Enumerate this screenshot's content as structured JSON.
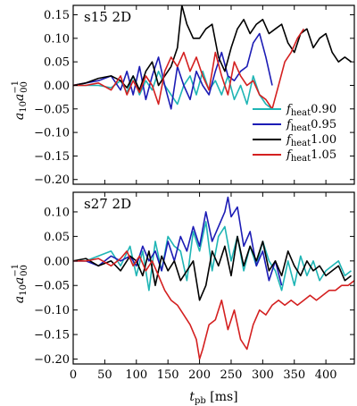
{
  "chart_data": [
    {
      "type": "line",
      "title": "s15 2D",
      "xlabel": "",
      "ylabel": "a10 a00^-1",
      "xlim": [
        0,
        445
      ],
      "ylim": [
        -0.21,
        0.17
      ],
      "xticks": [
        0,
        50,
        100,
        150,
        200,
        250,
        300,
        350,
        400
      ],
      "yticks": [
        -0.2,
        -0.15,
        -0.1,
        -0.05,
        0.0,
        0.05,
        0.1,
        0.15
      ],
      "ytick_labels": [
        "−0.20",
        "−0.15",
        "−0.10",
        "−0.05",
        "0.00",
        "0.05",
        "0.10",
        "0.15"
      ],
      "legend_position": "center-right",
      "series": [
        {
          "name": "f_heat 0.90",
          "color": "#1fb5b5",
          "x": [
            0,
            20,
            40,
            60,
            75,
            85,
            95,
            105,
            115,
            125,
            135,
            145,
            155,
            165,
            175,
            185,
            195,
            205,
            215,
            225,
            235,
            245,
            255,
            265,
            275,
            285,
            295,
            305,
            315
          ],
          "y": [
            0.0,
            0.0,
            0.0,
            -0.005,
            0.01,
            -0.015,
            0.02,
            -0.02,
            0.01,
            -0.01,
            0.03,
            0.0,
            -0.02,
            -0.04,
            0.0,
            0.02,
            -0.02,
            0.03,
            -0.01,
            0.01,
            -0.02,
            0.02,
            -0.03,
            0.0,
            -0.04,
            0.02,
            -0.02,
            -0.04,
            -0.05
          ]
        },
        {
          "name": "f_heat 0.95",
          "color": "#1c1cb5",
          "x": [
            0,
            20,
            40,
            60,
            75,
            85,
            95,
            105,
            115,
            125,
            135,
            145,
            155,
            165,
            175,
            185,
            195,
            205,
            215,
            225,
            235,
            245,
            255,
            265,
            275,
            285,
            295,
            305,
            315
          ],
          "y": [
            0.0,
            0.005,
            0.01,
            0.02,
            -0.01,
            0.03,
            -0.02,
            0.04,
            -0.03,
            0.02,
            0.06,
            0.0,
            -0.05,
            0.04,
            0.0,
            -0.03,
            0.03,
            0.0,
            -0.02,
            0.03,
            0.07,
            0.02,
            0.01,
            0.03,
            0.04,
            0.09,
            0.11,
            0.06,
            0.0
          ]
        },
        {
          "name": "f_heat 1.00",
          "color": "#000000",
          "x": [
            0,
            20,
            40,
            60,
            75,
            85,
            95,
            105,
            115,
            125,
            135,
            145,
            155,
            165,
            172,
            180,
            190,
            200,
            210,
            220,
            230,
            240,
            250,
            260,
            270,
            280,
            290,
            300,
            310,
            320,
            330,
            340,
            350,
            360,
            370,
            380,
            390,
            400,
            410,
            420,
            430,
            440
          ],
          "y": [
            0.0,
            0.005,
            0.015,
            0.02,
            0.01,
            -0.005,
            0.02,
            -0.01,
            0.03,
            0.05,
            0.0,
            0.02,
            0.04,
            0.08,
            0.17,
            0.13,
            0.1,
            0.1,
            0.12,
            0.13,
            0.06,
            0.03,
            0.08,
            0.12,
            0.14,
            0.11,
            0.13,
            0.14,
            0.11,
            0.12,
            0.13,
            0.09,
            0.07,
            0.11,
            0.12,
            0.08,
            0.1,
            0.11,
            0.07,
            0.05,
            0.06,
            0.05
          ]
        },
        {
          "name": "f_heat 1.05",
          "color": "#d42020",
          "x": [
            0,
            20,
            40,
            60,
            75,
            85,
            95,
            105,
            115,
            125,
            135,
            145,
            155,
            165,
            175,
            185,
            195,
            205,
            215,
            225,
            235,
            245,
            255,
            265,
            275,
            285,
            295,
            305,
            315,
            325,
            335,
            345,
            355,
            365
          ],
          "y": [
            0.0,
            0.0,
            0.005,
            -0.01,
            0.02,
            -0.02,
            0.01,
            -0.015,
            0.02,
            0.0,
            -0.04,
            0.03,
            0.06,
            0.04,
            0.07,
            0.03,
            0.06,
            0.02,
            -0.01,
            0.07,
            0.02,
            -0.02,
            0.05,
            0.02,
            0.0,
            0.01,
            -0.02,
            -0.03,
            -0.05,
            0.0,
            0.05,
            0.07,
            0.1,
            0.12
          ]
        }
      ]
    },
    {
      "type": "line",
      "title": "s27 2D",
      "xlabel": "t_pb [ms]",
      "ylabel": "a10 a00^-1",
      "xlim": [
        0,
        445
      ],
      "ylim": [
        -0.21,
        0.14
      ],
      "xticks": [
        0,
        50,
        100,
        150,
        200,
        250,
        300,
        350,
        400
      ],
      "yticks": [
        -0.2,
        -0.15,
        -0.1,
        -0.05,
        0.0,
        0.05,
        0.1
      ],
      "ytick_labels": [
        "−0.20",
        "−0.15",
        "−0.10",
        "−0.05",
        "0.00",
        "0.05",
        "0.10"
      ],
      "series": [
        {
          "name": "f_heat 0.90",
          "color": "#1fb5b5",
          "x": [
            0,
            20,
            40,
            60,
            75,
            90,
            100,
            110,
            120,
            130,
            140,
            150,
            160,
            170,
            180,
            190,
            200,
            210,
            220,
            230,
            240,
            250,
            260,
            270,
            280,
            290,
            300,
            310,
            320,
            330,
            340,
            350,
            360,
            370,
            380,
            390,
            400,
            410,
            420,
            430,
            440
          ],
          "y": [
            0.0,
            0.0,
            0.01,
            0.02,
            -0.01,
            0.03,
            -0.03,
            0.02,
            -0.06,
            0.04,
            -0.02,
            0.05,
            0.03,
            0.02,
            -0.04,
            0.06,
            0.02,
            0.08,
            -0.02,
            0.05,
            0.07,
            0.0,
            0.05,
            -0.02,
            0.03,
            -0.01,
            0.04,
            0.0,
            -0.02,
            -0.06,
            0.0,
            -0.05,
            0.01,
            -0.03,
            0.0,
            -0.04,
            -0.02,
            -0.01,
            0.0,
            -0.03,
            -0.02
          ]
        },
        {
          "name": "f_heat 0.95",
          "color": "#1c1cb5",
          "x": [
            0,
            20,
            40,
            60,
            75,
            90,
            100,
            110,
            120,
            130,
            140,
            150,
            160,
            170,
            180,
            190,
            200,
            210,
            220,
            230,
            240,
            245,
            250,
            260,
            270,
            280,
            290,
            300,
            310,
            320,
            330
          ],
          "y": [
            0.0,
            0.0,
            -0.01,
            0.01,
            0.0,
            0.01,
            -0.01,
            0.03,
            0.0,
            0.02,
            -0.02,
            0.04,
            0.0,
            0.05,
            0.02,
            0.07,
            0.03,
            0.1,
            0.04,
            0.07,
            0.1,
            0.13,
            0.09,
            0.11,
            0.03,
            0.06,
            -0.01,
            0.02,
            -0.04,
            0.0,
            -0.05
          ]
        },
        {
          "name": "f_heat 1.00",
          "color": "#000000",
          "x": [
            0,
            20,
            40,
            60,
            75,
            90,
            100,
            110,
            120,
            130,
            140,
            150,
            160,
            170,
            180,
            190,
            200,
            210,
            220,
            230,
            240,
            250,
            260,
            270,
            280,
            290,
            300,
            310,
            320,
            330,
            340,
            350,
            360,
            370,
            380,
            390,
            400,
            410,
            420,
            430,
            440
          ],
          "y": [
            0.0,
            0.005,
            -0.01,
            0.0,
            -0.02,
            0.01,
            0.0,
            -0.03,
            0.02,
            -0.05,
            0.01,
            -0.02,
            0.0,
            -0.04,
            -0.02,
            0.0,
            -0.08,
            -0.05,
            0.02,
            -0.01,
            0.03,
            -0.03,
            0.05,
            -0.01,
            0.03,
            0.0,
            0.04,
            -0.02,
            0.0,
            -0.03,
            0.02,
            -0.01,
            -0.03,
            0.0,
            -0.02,
            -0.01,
            -0.03,
            -0.02,
            -0.01,
            -0.04,
            -0.03
          ]
        },
        {
          "name": "f_heat 1.05",
          "color": "#d42020",
          "x": [
            0,
            20,
            40,
            60,
            75,
            85,
            95,
            105,
            115,
            125,
            135,
            145,
            155,
            165,
            175,
            185,
            195,
            200,
            205,
            215,
            225,
            235,
            245,
            255,
            265,
            275,
            285,
            295,
            305,
            315,
            325,
            335,
            345,
            355,
            365,
            375,
            385,
            395,
            405,
            415,
            425,
            435,
            445
          ],
          "y": [
            0.0,
            0.0,
            0.005,
            -0.01,
            0.005,
            0.02,
            -0.01,
            0.01,
            -0.02,
            0.0,
            -0.03,
            -0.06,
            -0.08,
            -0.09,
            -0.11,
            -0.13,
            -0.16,
            -0.2,
            -0.18,
            -0.13,
            -0.12,
            -0.08,
            -0.14,
            -0.1,
            -0.16,
            -0.18,
            -0.13,
            -0.1,
            -0.11,
            -0.09,
            -0.08,
            -0.09,
            -0.08,
            -0.09,
            -0.08,
            -0.07,
            -0.08,
            -0.07,
            -0.06,
            -0.06,
            -0.05,
            -0.05,
            -0.04
          ]
        }
      ]
    }
  ]
}
